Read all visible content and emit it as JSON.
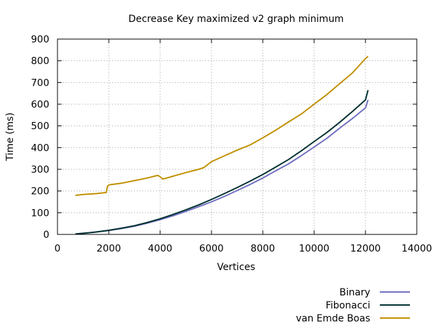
{
  "chart_data": {
    "type": "line",
    "title": "Decrease Key maximized v2 graph minimum",
    "xlabel": "Vertices",
    "ylabel": "Time (ms)",
    "xlim": [
      0,
      14000
    ],
    "ylim": [
      0,
      900
    ],
    "xticks": [
      0,
      2000,
      4000,
      6000,
      8000,
      10000,
      12000,
      14000
    ],
    "yticks": [
      0,
      100,
      200,
      300,
      400,
      500,
      600,
      700,
      800,
      900
    ],
    "grid": true,
    "legend_position": "bottom-right",
    "series": [
      {
        "name": "Binary",
        "color": "#7070c0",
        "x": [
          700,
          1000,
          1500,
          2000,
          2500,
          3000,
          3500,
          4000,
          4500,
          5000,
          5500,
          6000,
          6500,
          7000,
          7500,
          8000,
          8500,
          9000,
          9500,
          10000,
          10500,
          11000,
          11500,
          12000,
          12100
        ],
        "y": [
          2,
          5,
          11,
          18,
          27,
          38,
          52,
          68,
          86,
          106,
          128,
          150,
          175,
          202,
          230,
          260,
          293,
          325,
          363,
          403,
          443,
          490,
          535,
          583,
          620
        ]
      },
      {
        "name": "Fibonacci",
        "color": "#003030",
        "x": [
          700,
          1000,
          1500,
          2000,
          2500,
          3000,
          3500,
          4000,
          4500,
          5000,
          5500,
          6000,
          6500,
          7000,
          7500,
          8000,
          8500,
          9000,
          9500,
          10000,
          10500,
          11000,
          11500,
          12000,
          12100
        ],
        "y": [
          2,
          5,
          11,
          19,
          29,
          40,
          55,
          72,
          92,
          113,
          136,
          161,
          188,
          216,
          245,
          276,
          310,
          345,
          385,
          428,
          470,
          517,
          567,
          620,
          665
        ]
      },
      {
        "name": "van Emde Boas",
        "color": "#c09000",
        "x": [
          700,
          1000,
          1500,
          1900,
          1950,
          2000,
          2500,
          3000,
          3500,
          3900,
          4000,
          4100,
          4500,
          5000,
          5500,
          5700,
          6000,
          6500,
          7000,
          7500,
          8000,
          8500,
          9000,
          9500,
          10000,
          10500,
          11000,
          11500,
          12000,
          12100
        ],
        "y": [
          180,
          184,
          188,
          193,
          222,
          228,
          236,
          248,
          260,
          272,
          266,
          255,
          268,
          285,
          300,
          308,
          335,
          362,
          388,
          412,
          445,
          480,
          518,
          555,
          600,
          645,
          695,
          745,
          810,
          820
        ]
      }
    ]
  }
}
